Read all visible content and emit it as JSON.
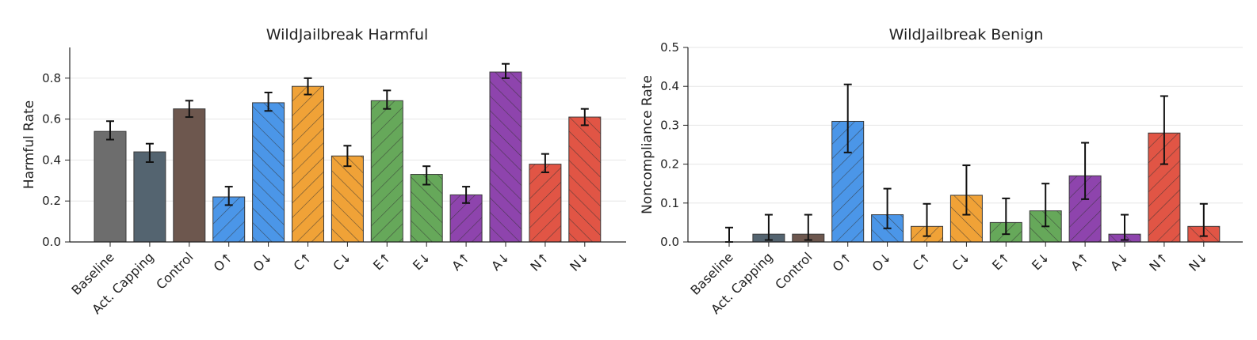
{
  "chart_data": [
    {
      "type": "bar",
      "title": "WildJailbreak Harmful",
      "xlabel": "",
      "ylabel": "Harmful Rate",
      "ylim": [
        0,
        0.95
      ],
      "yticks": [
        "0.0",
        "0.2",
        "0.4",
        "0.6",
        "0.8"
      ],
      "grid": "horizontal, light",
      "categories": [
        "Baseline",
        "Act. Capping",
        "Control",
        "O↑",
        "O↓",
        "C↑",
        "C↓",
        "E↑",
        "E↓",
        "A↑",
        "A↓",
        "N↑",
        "N↓"
      ],
      "values": [
        0.54,
        0.44,
        0.65,
        0.22,
        0.68,
        0.76,
        0.42,
        0.69,
        0.33,
        0.23,
        0.83,
        0.38,
        0.61
      ],
      "error_low": [
        0.5,
        0.39,
        0.61,
        0.18,
        0.64,
        0.72,
        0.37,
        0.65,
        0.28,
        0.19,
        0.8,
        0.34,
        0.57
      ],
      "error_high": [
        0.59,
        0.48,
        0.69,
        0.27,
        0.73,
        0.8,
        0.47,
        0.74,
        0.37,
        0.27,
        0.87,
        0.43,
        0.65
      ],
      "colors": [
        "#6d6d6d",
        "#546470",
        "#6d574e",
        "#4b96e8",
        "#4b96e8",
        "#f0a237",
        "#f0a237",
        "#66a85a",
        "#66a85a",
        "#8e44ad",
        "#8e44ad",
        "#e15545",
        "#e15545"
      ],
      "hatch": [
        "none",
        "none",
        "none",
        "/",
        "\\",
        "/",
        "\\",
        "/",
        "\\",
        "/",
        "\\",
        "/",
        "\\"
      ]
    },
    {
      "type": "bar",
      "title": "WildJailbreak Benign",
      "xlabel": "",
      "ylabel": "Noncompliance Rate",
      "ylim": [
        0,
        0.5
      ],
      "yticks": [
        "0.0",
        "0.1",
        "0.2",
        "0.3",
        "0.4",
        "0.5"
      ],
      "grid": "horizontal, light",
      "categories": [
        "Baseline",
        "Act. Capping",
        "Control",
        "O↑",
        "O↓",
        "C↑",
        "C↓",
        "E↑",
        "E↓",
        "A↑",
        "A↓",
        "N↑",
        "N↓"
      ],
      "values": [
        0.0,
        0.02,
        0.02,
        0.31,
        0.07,
        0.04,
        0.12,
        0.05,
        0.08,
        0.17,
        0.02,
        0.28,
        0.04
      ],
      "error_low": [
        0.0,
        0.005,
        0.005,
        0.23,
        0.035,
        0.015,
        0.07,
        0.02,
        0.04,
        0.11,
        0.005,
        0.2,
        0.015
      ],
      "error_high": [
        0.037,
        0.07,
        0.07,
        0.405,
        0.137,
        0.098,
        0.197,
        0.112,
        0.15,
        0.255,
        0.07,
        0.375,
        0.098
      ],
      "colors": [
        "#6d6d6d",
        "#546470",
        "#6d574e",
        "#4b96e8",
        "#4b96e8",
        "#f0a237",
        "#f0a237",
        "#66a85a",
        "#66a85a",
        "#8e44ad",
        "#8e44ad",
        "#e15545",
        "#e15545"
      ],
      "hatch": [
        "none",
        "none",
        "none",
        "/",
        "\\",
        "/",
        "\\",
        "/",
        "\\",
        "/",
        "\\",
        "/",
        "\\"
      ]
    }
  ]
}
